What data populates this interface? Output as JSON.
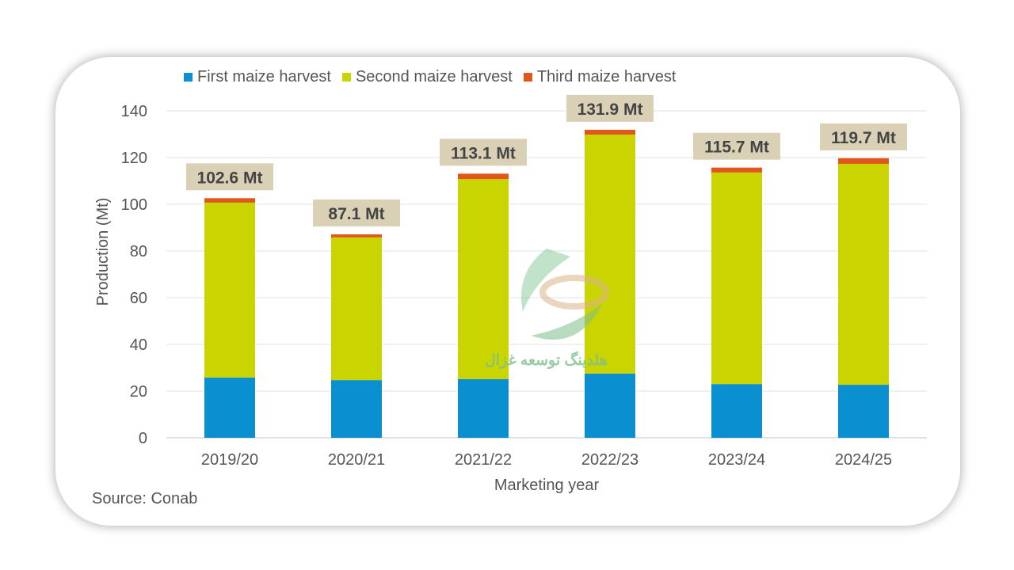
{
  "chart_data": {
    "type": "bar",
    "stacked": true,
    "title": "",
    "xlabel": "Marketing year",
    "ylabel": "Production (Mt)",
    "ylim": [
      0,
      140
    ],
    "yticks": [
      0,
      20,
      40,
      60,
      80,
      100,
      120,
      140
    ],
    "grid": true,
    "legend_position": "top",
    "categories": [
      "2019/20",
      "2020/21",
      "2021/22",
      "2022/23",
      "2023/24",
      "2024/25"
    ],
    "series": [
      {
        "name": "First maize harvest",
        "color": "#0a8fd0",
        "values": [
          25.8,
          24.7,
          25.1,
          27.5,
          23.0,
          22.7
        ]
      },
      {
        "name": "Second maize harvest",
        "color": "#c9d400",
        "values": [
          74.9,
          61.1,
          85.7,
          102.3,
          90.6,
          94.6
        ]
      },
      {
        "name": "Third maize harvest",
        "color": "#e0561b",
        "values": [
          1.9,
          1.3,
          2.3,
          2.1,
          2.1,
          2.4
        ]
      }
    ],
    "total_labels": [
      "102.6 Mt",
      "87.1 Mt",
      "113.1 Mt",
      "131.9 Mt",
      "115.7 Mt",
      "119.7 Mt"
    ],
    "totals": [
      102.6,
      87.1,
      113.1,
      131.9,
      115.7,
      119.7
    ]
  },
  "source": "Source: Conab",
  "watermark": "هلدینگ توسعه غزال"
}
